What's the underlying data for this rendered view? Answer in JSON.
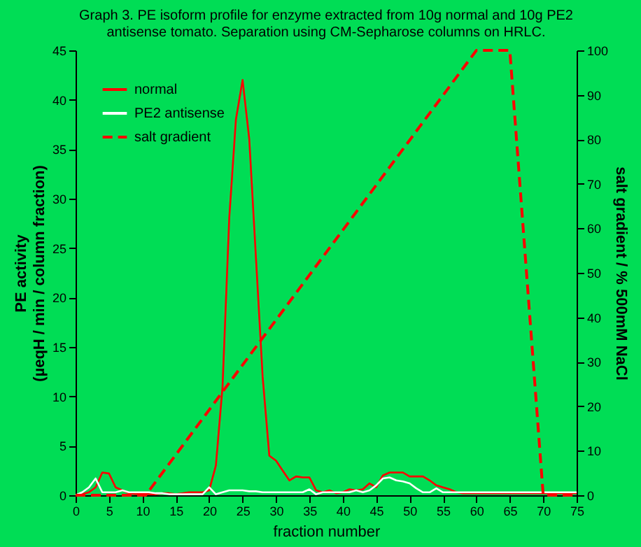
{
  "chart_data": {
    "type": "line",
    "title": [
      "Graph 3. PE isoform profile for enzyme extracted from 10g normal and 10g PE2",
      "antisense tomato. Separation using CM-Sepharose columns on HRLC."
    ],
    "xlabel": "fraction number",
    "ylabel": "PE activity\n(µeqH / min / column fraction)",
    "y2label": "salt gradient / % 500mM NaCl",
    "x": [
      0,
      1,
      2,
      3,
      4,
      5,
      6,
      7,
      8,
      9,
      10,
      11,
      12,
      13,
      14,
      15,
      16,
      17,
      18,
      19,
      20,
      21,
      22,
      23,
      24,
      25,
      26,
      27,
      28,
      29,
      30,
      31,
      32,
      33,
      34,
      35,
      36,
      37,
      38,
      39,
      40,
      41,
      42,
      43,
      44,
      45,
      46,
      47,
      48,
      49,
      50,
      51,
      52,
      53,
      54,
      55,
      56,
      57,
      58,
      59,
      60,
      61,
      62,
      63,
      64,
      65,
      66,
      67,
      68,
      69,
      70,
      71,
      72,
      73,
      74,
      75
    ],
    "series": [
      {
        "name": "normal",
        "color": "#ff0000",
        "values": [
          0,
          0.1,
          0.3,
          0.8,
          2.3,
          2.2,
          0.8,
          0.5,
          0.2,
          0.1,
          0.2,
          0.1,
          0.1,
          0.2,
          0.2,
          0.1,
          0.2,
          0.3,
          0.3,
          0.3,
          0.5,
          3,
          11,
          28,
          38,
          42,
          36,
          24,
          12,
          4,
          3.5,
          2.5,
          1.5,
          1.9,
          1.8,
          1.8,
          0.5,
          0.3,
          0.5,
          0.2,
          0.3,
          0.6,
          0.5,
          0.6,
          1.2,
          0.8,
          2,
          2.3,
          2.3,
          2.3,
          1.9,
          1.9,
          1.9,
          1.5,
          1,
          0.8,
          0.6,
          0.3,
          0.2,
          0.2,
          0.2,
          0.2,
          0.2,
          0.2,
          0.2,
          0.2,
          0.2,
          0.2,
          0.2,
          0.2,
          0.2,
          0.2,
          0.2,
          0.2,
          0.2,
          0.2
        ]
      },
      {
        "name": "PE2 antisense",
        "color": "#ffffff",
        "values": [
          0,
          0.3,
          0.8,
          1.7,
          0.3,
          0.3,
          0.3,
          0.5,
          0.3,
          0.3,
          0.3,
          0.3,
          0.2,
          0.2,
          0.1,
          0.1,
          0.1,
          0.1,
          0.1,
          0.1,
          0.8,
          0.1,
          0.3,
          0.5,
          0.5,
          0.5,
          0.4,
          0.4,
          0.3,
          0.3,
          0.3,
          0.3,
          0.3,
          0.3,
          0.3,
          0.6,
          0.1,
          0.3,
          0.3,
          0.3,
          0.3,
          0.3,
          0.5,
          0.3,
          0.5,
          1,
          1.7,
          1.8,
          1.5,
          1.4,
          1.2,
          0.7,
          0.3,
          0.3,
          0.7,
          0.3,
          0.3,
          0.3,
          0.3,
          0.3,
          0.3,
          0.3,
          0.3,
          0.3,
          0.3,
          0.3,
          0.3,
          0.3,
          0.3,
          0.3,
          0.3,
          0.3,
          0.3,
          0.3,
          0.3,
          0.3
        ]
      },
      {
        "name": "salt gradient",
        "color": "#ff0000",
        "axis": "y2",
        "line_style": "dashed",
        "x": [
          0,
          10.5,
          60,
          65,
          70,
          75
        ],
        "values": [
          0,
          0,
          100,
          100,
          0,
          0
        ]
      }
    ],
    "xlim": [
      0,
      75
    ],
    "xticks": [
      0,
      5,
      10,
      15,
      20,
      25,
      30,
      35,
      40,
      45,
      50,
      55,
      60,
      65,
      70,
      75
    ],
    "ylim": [
      0,
      45
    ],
    "yticks": [
      0,
      5,
      10,
      15,
      20,
      25,
      30,
      35,
      40,
      45
    ],
    "y2lim": [
      0,
      100
    ],
    "y2ticks": [
      0,
      10,
      20,
      30,
      40,
      50,
      60,
      70,
      80,
      90,
      100
    ],
    "legend": "top left",
    "grid": false,
    "marker": "none",
    "line_style": "solid"
  }
}
